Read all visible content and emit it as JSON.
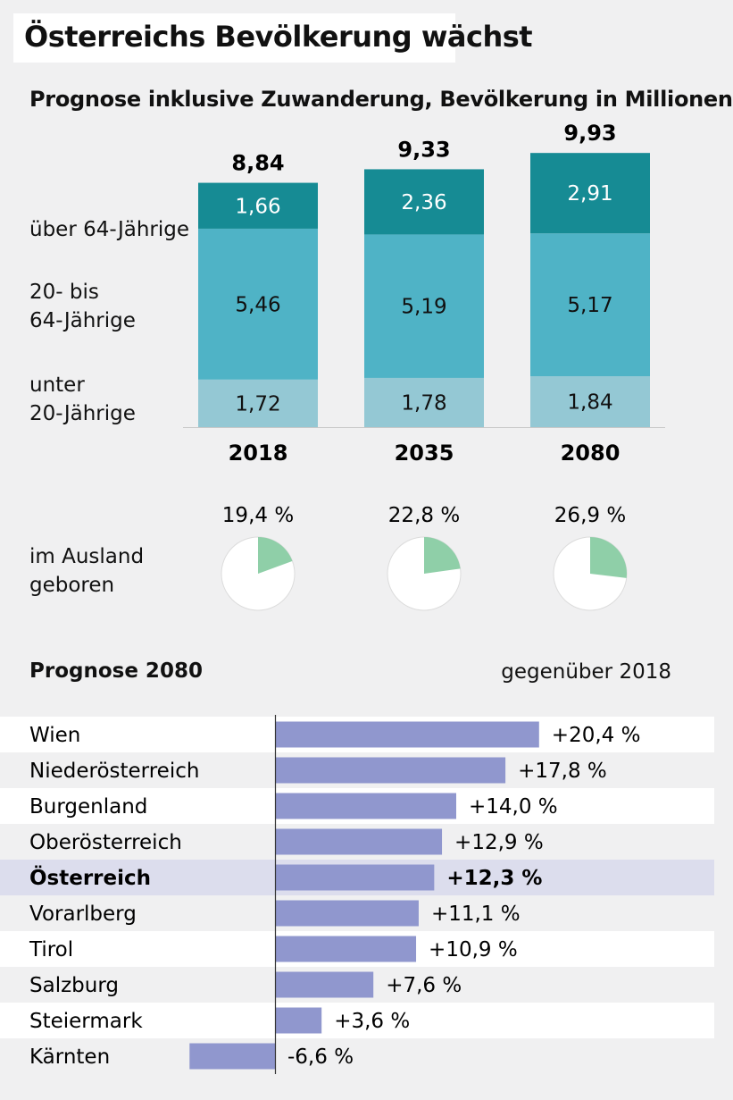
{
  "title": "Österreichs Bevölkerung wächst",
  "subtitle": "Prognose inklusive Zuwanderung, Bevölkerung in Millionen",
  "colors": {
    "age_65plus": "#168b94",
    "age_20_64": "#4fb3c6",
    "age_under20": "#94c8d4",
    "foreign_born": "#8fcfa8",
    "bar": "#9097ce",
    "highlight_row": "#dcdded"
  },
  "row_labels": {
    "age_65plus": "über 64-Jährige",
    "age_20_64": [
      "20- bis",
      "64-Jährige"
    ],
    "age_under20": [
      "unter",
      "20-Jährige"
    ],
    "foreign_born": [
      "im Ausland",
      "geboren"
    ]
  },
  "chart_data": [
    {
      "type": "bar",
      "stacked": true,
      "categories": [
        "2018",
        "2035",
        "2080"
      ],
      "totals": [
        "8,84",
        "9,33",
        "9,93"
      ],
      "series": [
        {
          "name": "unter 20-Jährige",
          "values": [
            1.72,
            1.78,
            1.84
          ],
          "labels": [
            "1,72",
            "1,78",
            "1,84"
          ]
        },
        {
          "name": "20- bis 64-Jährige",
          "values": [
            5.46,
            5.19,
            5.17
          ],
          "labels": [
            "5,46",
            "5,19",
            "5,17"
          ]
        },
        {
          "name": "über 64-Jährige",
          "values": [
            1.66,
            2.36,
            2.91
          ],
          "labels": [
            "1,66",
            "2,36",
            "2,91"
          ]
        }
      ]
    },
    {
      "type": "pie",
      "categories": [
        "2018",
        "2035",
        "2080"
      ],
      "values": [
        19.4,
        22.8,
        26.9
      ],
      "labels": [
        "19,4 %",
        "22,8 %",
        "26,9 %"
      ]
    },
    {
      "type": "bar",
      "orientation": "horizontal",
      "title": "Prognose 2080",
      "subtitle": "gegenüber 2018",
      "categories": [
        "Wien",
        "Niederösterreich",
        "Burgenland",
        "Oberösterreich",
        "Österreich",
        "Vorarlberg",
        "Tirol",
        "Salzburg",
        "Steiermark",
        "Kärnten"
      ],
      "values": [
        20.4,
        17.8,
        14.0,
        12.9,
        12.3,
        11.1,
        10.9,
        7.6,
        3.6,
        -6.6
      ],
      "labels": [
        "+20,4 %",
        "+17,8 %",
        "+14,0 %",
        "+12,9 %",
        "+12,3 %",
        "+11,1 %",
        "+10,9 %",
        "+7,6 %",
        "+3,6 %",
        "-6,6 %"
      ],
      "highlight": "Österreich"
    }
  ]
}
